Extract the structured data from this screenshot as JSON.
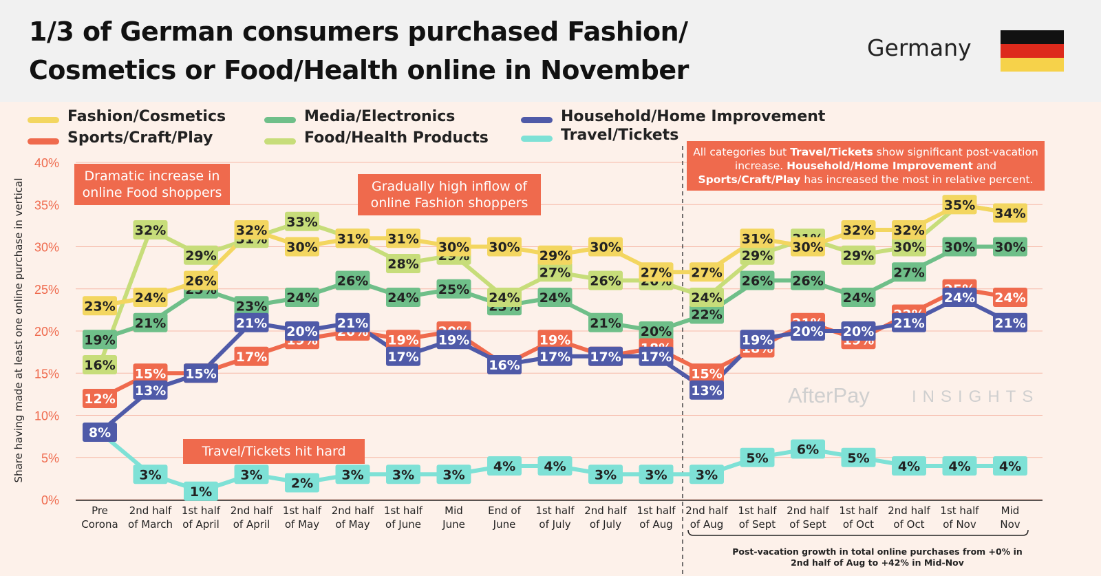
{
  "header": {
    "title": "1/3 of German consumers purchased Fashion/ Cosmetics or Food/Health online in November",
    "country": "Germany"
  },
  "flag": {
    "colors": [
      "#111111",
      "#dd2a1c",
      "#f6d24a"
    ]
  },
  "colors": {
    "fashion": "#f3d660",
    "media": "#6fbf89",
    "household": "#4f5aa8",
    "sports": "#ef6a4d",
    "food": "#c7dd7a",
    "travel": "#7ee1d6",
    "callout_bg": "#ef6a4d"
  },
  "legend": [
    "Fashion/Cosmetics",
    "Media/Electronics",
    "Household/Home Improvement",
    "Sports/Craft/Play",
    "Food/Health Products",
    "Travel/Tickets"
  ],
  "callouts": {
    "food": "Dramatic increase in online Food shoppers",
    "fashion": "Gradually high inflow of online Fashion shoppers",
    "travel": "Travel/Tickets hit hard",
    "post_vacation_pre": "All categories but ",
    "post_vacation_b1": "Travel/Tickets",
    "post_vacation_mid1": " show significant post-vacation increase. ",
    "post_vacation_b2": "Household/Home Improvement",
    "post_vacation_mid2": " and ",
    "post_vacation_b3": "Sports/Craft/Play",
    "post_vacation_end": " has increased the most in relative percent."
  },
  "watermark": {
    "brand": "AfterPay",
    "suffix": "INSIGHTS"
  },
  "footnote": "Post-vacation growth in total online purchases from +0% in 2nd half of Aug to +42% in Mid-Nov",
  "chart_data": {
    "type": "line",
    "ylabel": "Share having made at least one online purchase in vertical",
    "ylim": [
      0,
      40
    ],
    "yticks": [
      "0%",
      "5%",
      "10%",
      "15%",
      "20%",
      "25%",
      "30%",
      "35%",
      "40%"
    ],
    "categories": [
      [
        "Pre",
        "Corona"
      ],
      [
        "2nd half",
        "of March"
      ],
      [
        "1st half",
        "of April"
      ],
      [
        "2nd half",
        "of April"
      ],
      [
        "1st half",
        "of May"
      ],
      [
        "2nd half",
        "of May"
      ],
      [
        "1st half",
        "of June"
      ],
      [
        "Mid",
        "June"
      ],
      [
        "End of",
        "June"
      ],
      [
        "1st half",
        "of July"
      ],
      [
        "2nd half",
        "of July"
      ],
      [
        "1st half",
        "of Aug"
      ],
      [
        "2nd half",
        "of Aug"
      ],
      [
        "1st half",
        "of Sept"
      ],
      [
        "2nd half",
        "of Sept"
      ],
      [
        "1st half",
        "of Oct"
      ],
      [
        "2nd half",
        "of Oct"
      ],
      [
        "1st half",
        "of Nov"
      ],
      [
        "Mid",
        "Nov"
      ]
    ],
    "series": [
      {
        "name": "Travel/Tickets",
        "key": "travel",
        "text": "#222222",
        "values": [
          8,
          3,
          1,
          3,
          2,
          3,
          3,
          3,
          4,
          4,
          3,
          3,
          3,
          5,
          6,
          5,
          4,
          4,
          4
        ]
      },
      {
        "name": "Media/Electronics",
        "key": "media",
        "text": "#222222",
        "values": [
          19,
          21,
          25,
          23,
          24,
          26,
          24,
          25,
          23,
          24,
          21,
          20,
          22,
          26,
          26,
          24,
          27,
          30,
          30
        ]
      },
      {
        "name": "Food/Health Products",
        "key": "food",
        "text": "#222222",
        "values": [
          16,
          32,
          29,
          31,
          33,
          31,
          28,
          29,
          24,
          27,
          26,
          26,
          24,
          29,
          31,
          29,
          30,
          35,
          34
        ]
      },
      {
        "name": "Sports/Craft/Play",
        "key": "sports",
        "text": "#ffffff",
        "values": [
          12,
          15,
          15,
          17,
          19,
          20,
          19,
          20,
          16,
          19,
          17,
          18,
          15,
          18,
          21,
          19,
          22,
          25,
          24
        ]
      },
      {
        "name": "Household/Home Improvement",
        "key": "household",
        "text": "#ffffff",
        "values": [
          8,
          13,
          15,
          21,
          20,
          21,
          17,
          19,
          16,
          17,
          17,
          17,
          13,
          19,
          20,
          20,
          21,
          24,
          21
        ]
      },
      {
        "name": "Fashion/Cosmetics",
        "key": "fashion",
        "text": "#222222",
        "values": [
          23,
          24,
          26,
          32,
          30,
          31,
          31,
          30,
          30,
          29,
          30,
          27,
          27,
          31,
          30,
          32,
          32,
          35,
          34
        ]
      }
    ],
    "grid": true,
    "legend_position": "top-left"
  }
}
